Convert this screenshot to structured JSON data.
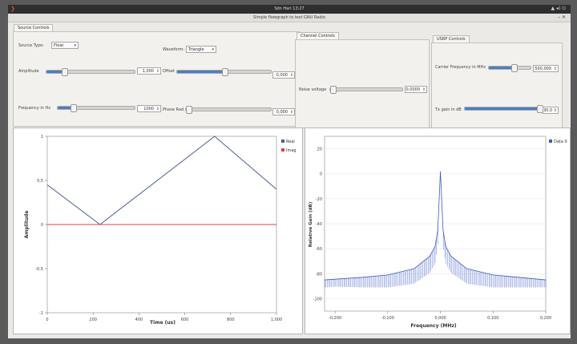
{
  "system": {
    "clock": "Sdn Hari 13:27"
  },
  "window": {
    "title": "Simple flowgraph to test GNU Radio"
  },
  "source_controls": {
    "tab": "Source Controls",
    "source_type_label": "Source Type:",
    "source_type_value": "Float",
    "waveform_label": "Waveform:",
    "waveform_value": "Triangle",
    "amplitude_label": "Amplitude",
    "amplitude_value": "1,000",
    "offset_label": "Offset",
    "offset_value": "0,000",
    "frequency_label": "Frequency in Hz",
    "frequency_value": "1000",
    "phase_label": "Phase Rad",
    "phase_value": "0,000",
    "amplitude_level": 0.2,
    "offset_level": 0.5,
    "frequency_level": 0.2,
    "phase_level": 0.0
  },
  "channel_controls": {
    "tab": "Channel Controls",
    "noise_label": "Noise voltage",
    "noise_value": "0,0000",
    "noise_level": 0.0
  },
  "usrp_controls": {
    "tab": "USRP Controls",
    "carrier_label": "Carrier Frequency in MHz",
    "carrier_value": "500,000",
    "carrier_level": 0.6,
    "gain_label": "Tx gain in dB",
    "gain_value": "30,0",
    "gain_level": 1.0
  },
  "time_plot": {
    "chart_data": {
      "type": "line",
      "xlabel": "Time (us)",
      "ylabel": "Amplitude",
      "xlim": [
        0,
        1000
      ],
      "ylim": [
        -1,
        1
      ],
      "x_ticks": [
        "0",
        "200",
        "400",
        "600",
        "800",
        "1,000"
      ],
      "y_ticks": [
        "1",
        "0,5",
        "0",
        "-0,5",
        "-1"
      ],
      "legend_position": "top-right",
      "series": [
        {
          "name": "Real",
          "color": "#4b5f8a",
          "x": [
            0,
            230,
            730,
            1000
          ],
          "y": [
            0.45,
            0.0,
            1.0,
            0.4
          ]
        },
        {
          "name": "Imag",
          "color": "#e0403a",
          "x": [
            0,
            1000
          ],
          "y": [
            0,
            0
          ]
        }
      ]
    }
  },
  "freq_plot": {
    "chart_data": {
      "type": "line",
      "xlabel": "Frequency (MHz)",
      "ylabel": "Relative Gain (dB)",
      "xlim": [
        -0.22,
        0.2
      ],
      "ylim": [
        -110,
        30
      ],
      "x_ticks": [
        "-0,200",
        "-0,100",
        "0,000",
        "0,100",
        "0,200"
      ],
      "x_tick_values": [
        -0.2,
        -0.1,
        0,
        0.1,
        0.2
      ],
      "y_ticks": [
        "20",
        "0",
        "-20",
        "-40",
        "-60",
        "-80",
        "-100"
      ],
      "y_tick_values": [
        20,
        0,
        -20,
        -40,
        -60,
        -80,
        -100
      ],
      "legend_position": "top-right",
      "series": [
        {
          "name": "Data 0",
          "color": "#3b5bc6",
          "x": [
            -0.22,
            -0.15,
            -0.1,
            -0.05,
            -0.02,
            -0.01,
            -0.005,
            0,
            0.005,
            0.01,
            0.02,
            0.05,
            0.1,
            0.15,
            0.2
          ],
          "y": [
            -85,
            -83,
            -81,
            -76,
            -66,
            -58,
            -45,
            2,
            -45,
            -58,
            -66,
            -76,
            -81,
            -83,
            -85
          ]
        }
      ]
    }
  }
}
